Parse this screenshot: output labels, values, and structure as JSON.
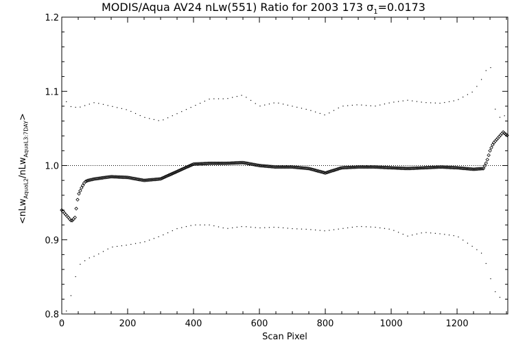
{
  "chart_data": {
    "type": "scatter",
    "title": {
      "main": "MODIS/Aqua AV24 nLw(551) Ratio for 2003 173 ",
      "sigma_symbol": "σ",
      "sigma_sub": "1",
      "sigma_value": "=0.0173"
    },
    "xlabel": "Scan Pixel",
    "ylabel": {
      "prefix": "<nLw",
      "sub1": "AquaL2",
      "mid": "/nLw",
      "sub2": "AquaL3:7DAY",
      "suffix": ">"
    },
    "xlim": [
      0,
      1354
    ],
    "ylim": [
      0.8,
      1.2
    ],
    "x_ticks": [
      0,
      200,
      400,
      600,
      800,
      1000,
      1200
    ],
    "y_ticks": [
      "0.8",
      "0.9",
      "1.0",
      "1.1",
      "1.2"
    ],
    "reference_line": 1.0,
    "series": [
      {
        "role": "mean",
        "marker": "diamond",
        "x": [
          0,
          10,
          20,
          30,
          40,
          50,
          60,
          70,
          80,
          100,
          150,
          200,
          250,
          300,
          350,
          400,
          450,
          500,
          550,
          600,
          650,
          700,
          750,
          800,
          850,
          900,
          950,
          1000,
          1050,
          1100,
          1150,
          1200,
          1250,
          1280,
          1290,
          1300,
          1310,
          1320,
          1330,
          1340,
          1354
        ],
        "y": [
          0.94,
          0.935,
          0.93,
          0.925,
          0.93,
          0.96,
          0.97,
          0.978,
          0.98,
          0.982,
          0.985,
          0.984,
          0.98,
          0.982,
          0.992,
          1.002,
          1.003,
          1.003,
          1.004,
          1.0,
          0.998,
          0.998,
          0.996,
          0.99,
          0.997,
          0.998,
          0.998,
          0.997,
          0.996,
          0.997,
          0.998,
          0.997,
          0.995,
          0.996,
          1.005,
          1.02,
          1.03,
          1.035,
          1.04,
          1.045,
          1.04
        ]
      },
      {
        "role": "upper",
        "marker": "dot",
        "x": [
          0,
          10,
          20,
          50,
          100,
          150,
          200,
          250,
          300,
          350,
          400,
          450,
          500,
          550,
          600,
          650,
          700,
          750,
          800,
          850,
          900,
          950,
          1000,
          1050,
          1100,
          1150,
          1200,
          1250,
          1280,
          1300,
          1320,
          1340,
          1354
        ],
        "y": [
          1.1,
          1.09,
          1.08,
          1.078,
          1.085,
          1.08,
          1.075,
          1.065,
          1.06,
          1.07,
          1.08,
          1.09,
          1.09,
          1.095,
          1.08,
          1.085,
          1.08,
          1.075,
          1.068,
          1.08,
          1.082,
          1.08,
          1.085,
          1.088,
          1.085,
          1.084,
          1.088,
          1.1,
          1.12,
          1.14,
          1.06,
          1.07,
          1.06
        ]
      },
      {
        "role": "lower",
        "marker": "dot",
        "x": [
          0,
          10,
          20,
          50,
          80,
          100,
          150,
          200,
          250,
          300,
          350,
          400,
          450,
          500,
          550,
          600,
          650,
          700,
          750,
          800,
          850,
          900,
          950,
          1000,
          1050,
          1100,
          1150,
          1200,
          1250,
          1280,
          1300,
          1320,
          1340
        ],
        "y": [
          0.79,
          0.8,
          0.81,
          0.865,
          0.875,
          0.878,
          0.89,
          0.893,
          0.897,
          0.905,
          0.915,
          0.92,
          0.92,
          0.915,
          0.918,
          0.916,
          0.917,
          0.915,
          0.914,
          0.912,
          0.915,
          0.918,
          0.917,
          0.914,
          0.905,
          0.91,
          0.908,
          0.905,
          0.89,
          0.88,
          0.85,
          0.825,
          0.82
        ]
      }
    ]
  }
}
